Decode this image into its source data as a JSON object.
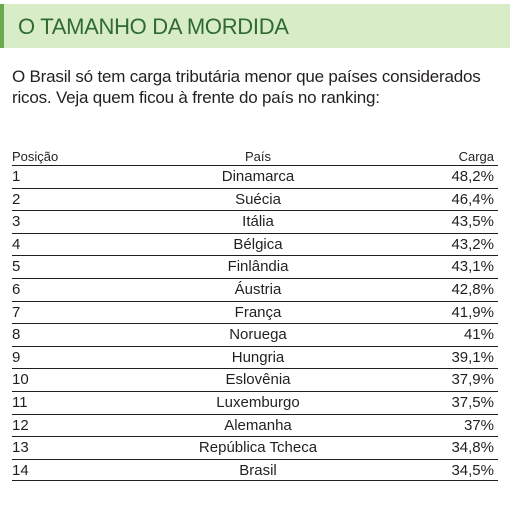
{
  "header": {
    "title": "O TAMANHO DA MORDIDA"
  },
  "intro": "O Brasil só tem carga tributária menor que países considerados ricos. Veja quem ficou à frente do país no ranking:",
  "colors": {
    "accent_green": "#6aa84f",
    "header_bg": "#d9ecc8",
    "title_green": "#2f6b2f"
  },
  "chart_data": {
    "type": "table",
    "columns": [
      "Posição",
      "País",
      "Carga"
    ],
    "rows": [
      {
        "position": "1",
        "country": "Dinamarca",
        "share": "48,2%"
      },
      {
        "position": "2",
        "country": "Suécia",
        "share": "46,4%"
      },
      {
        "position": "3",
        "country": "Itália",
        "share": "43,5%"
      },
      {
        "position": "4",
        "country": "Bélgica",
        "share": "43,2%"
      },
      {
        "position": "5",
        "country": "Finlândia",
        "share": "43,1%"
      },
      {
        "position": "6",
        "country": "Áustria",
        "share": "42,8%"
      },
      {
        "position": "7",
        "country": "França",
        "share": "41,9%"
      },
      {
        "position": "8",
        "country": "Noruega",
        "share": "41%"
      },
      {
        "position": "9",
        "country": "Hungria",
        "share": "39,1%"
      },
      {
        "position": "10",
        "country": "Eslovênia",
        "share": "37,9%"
      },
      {
        "position": "11",
        "country": "Luxemburgo",
        "share": "37,5%"
      },
      {
        "position": "12",
        "country": "Alemanha",
        "share": "37%"
      },
      {
        "position": "13",
        "country": "República Tcheca",
        "share": "34,8%"
      },
      {
        "position": "14",
        "country": "Brasil",
        "share": "34,5%"
      }
    ]
  }
}
